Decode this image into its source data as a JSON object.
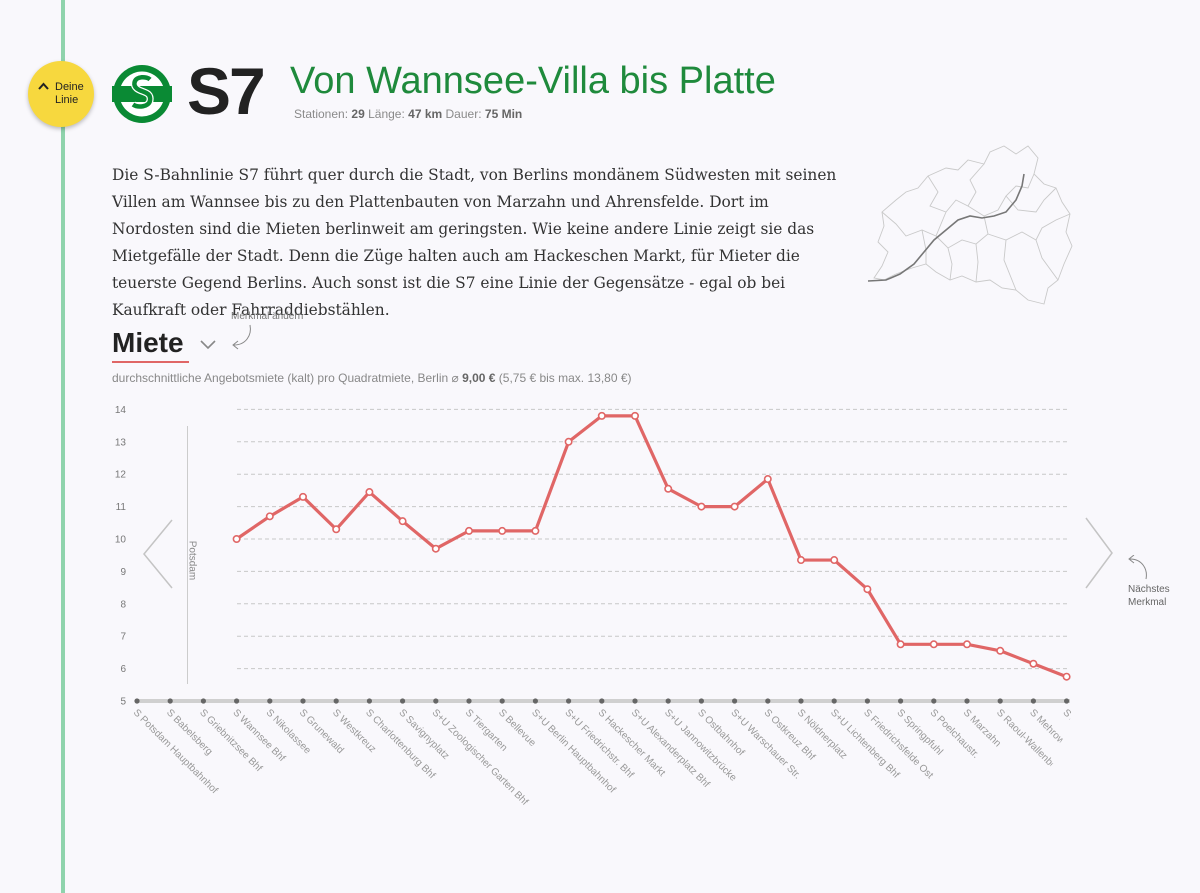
{
  "sidebar": {
    "toggle_label_1": "Deine",
    "toggle_label_2": "Linie"
  },
  "header": {
    "line_name": "S7",
    "title": "Von Wannsee-Villa bis Platte",
    "stats": {
      "stations_label": "Stationen:",
      "stations_value": "29",
      "length_label": "Länge:",
      "length_value": "47 km",
      "duration_label": "Dauer:",
      "duration_value": "75 Min"
    }
  },
  "intro": "Die S-Bahnlinie S7 führt quer durch die Stadt, von Berlins mondänem Südwesten mit seinen Villen am Wannsee bis zu den Plattenbauten von Marzahn und Ahrensfelde. Dort im Nordosten sind die Mieten berlinweit am geringsten. Wie keine andere Linie zeigt sie das Mietgefälle der Stadt. Denn die Züge halten auch am Hackeschen Markt, für Mieter die teuerste Gegend Berlins. Auch sonst ist die S7 eine Linie der Gegensätze - egal ob bei Kaufkraft oder Fahrraddiebstählen.",
  "feature": {
    "hint": "Merkmal ändern",
    "name": "Miete",
    "subtitle_pre": "durchschnittliche Angebotsmiete (kalt) pro Quadratmiete, Berlin ⌀ ",
    "subtitle_avg": "9,00 €",
    "subtitle_post": " (5,75 € bis max. 13,80 €)"
  },
  "nav": {
    "prev_label": "Potsdam",
    "next_label_1": "Nächstes",
    "next_label_2": "Merkmal"
  },
  "colors": {
    "line": "#e06666",
    "accent_green": "#1f8a3c",
    "sbahn_green": "#0a8a34",
    "track": "#8fd3ac",
    "button": "#f7d83e"
  },
  "chart_data": {
    "type": "line",
    "ylim": [
      5,
      14
    ],
    "yticks": [
      5,
      6,
      7,
      8,
      9,
      10,
      11,
      12,
      13,
      14
    ],
    "grid": true,
    "categories": [
      "S Potsdam Hauptbahnhof",
      "S Babelsberg",
      "S Griebnitzsee Bhf",
      "S Wannsee Bhf",
      "S Nikolassee",
      "S Grunewald",
      "S Westkreuz",
      "S Charlottenburg Bhf",
      "S Savignyplatz",
      "S+U Zoologischer Garten Bhf",
      "S Tiergarten",
      "S Bellevue",
      "S+U Berlin Hauptbahnhof",
      "S+U Friedrichstr. Bhf",
      "S Hackescher Markt",
      "S+U Alexanderplatz Bhf",
      "S+U Jannowitzbrücke",
      "S Ostbahnhof",
      "S+U Warschauer Str.",
      "S Ostkreuz Bhf",
      "S Nöldnerplatz",
      "S+U Lichtenberg Bhf",
      "S Friedrichsfelde Ost",
      "S Springpfuhl",
      "S Poelchaustr.",
      "S Marzahn",
      "S Raoul-Wallenberg-Str.",
      "S Mehrower Allee",
      "S Ahrensfelde Bhf"
    ],
    "values": [
      null,
      null,
      null,
      10.0,
      10.7,
      11.3,
      10.3,
      11.45,
      10.55,
      9.7,
      10.25,
      10.25,
      10.25,
      13.0,
      13.8,
      13.8,
      11.55,
      11.0,
      11.0,
      11.85,
      9.35,
      9.35,
      8.45,
      6.75,
      6.75,
      6.75,
      6.55,
      6.15,
      5.75
    ]
  }
}
